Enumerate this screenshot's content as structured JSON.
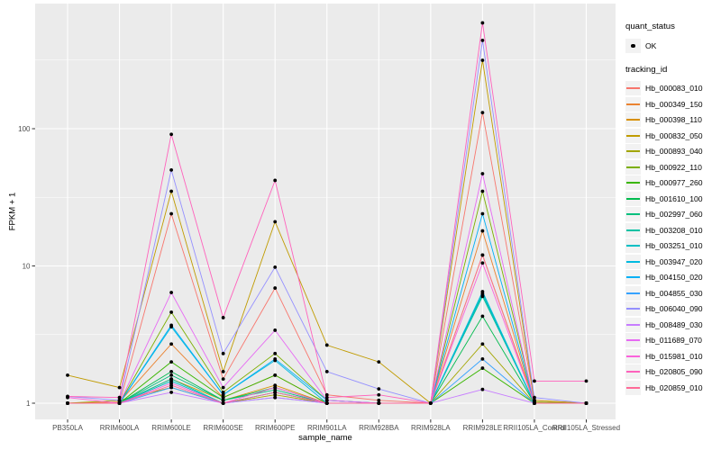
{
  "legend": {
    "quant_status": {
      "title": "quant_status",
      "items": [
        {
          "label": "OK",
          "marker": "black-point"
        }
      ]
    },
    "tracking_id": {
      "title": "tracking_id"
    }
  },
  "chart_data": {
    "type": "line",
    "title": "",
    "xlabel": "sample_name",
    "ylabel": "FPKM + 1",
    "yscale": "log10",
    "yticks": [
      1,
      10,
      100
    ],
    "yticks_minor": [
      3.162,
      31.62,
      316.2
    ],
    "ylim": [
      0.73,
      820
    ],
    "grid": "on",
    "legend_position": "right",
    "panel_bg": "#EBEBEB",
    "grid_color": "#FFFFFF",
    "point_color": "#000000",
    "tick_label_color": "#4D4D4D",
    "categories": [
      "PB350LA",
      "RRIM600LA",
      "RRIM600LE",
      "RRIM600SE",
      "RRIM600PE",
      "RRIM901LA",
      "RRIM928BA",
      "RRIM928LA",
      "RRIM928LE",
      "RRII105LA_Control",
      "RRII105LA_Stressed"
    ],
    "series": [
      {
        "name": "Hb_000083_010",
        "color": "#F8766D",
        "values": [
          1.0,
          1.0,
          24,
          1.5,
          6.9,
          1.15,
          1.05,
          1.0,
          131,
          1.05,
          1.0
        ]
      },
      {
        "name": "Hb_000349_150",
        "color": "#EA8331",
        "values": [
          1.0,
          1.02,
          2.7,
          1.1,
          1.6,
          1.0,
          1.0,
          1.0,
          18,
          1.0,
          1.0
        ]
      },
      {
        "name": "Hb_000398_110",
        "color": "#D89000",
        "values": [
          1.0,
          1.0,
          1.5,
          1.05,
          1.35,
          1.0,
          1.0,
          1.0,
          12,
          1.02,
          1.0
        ]
      },
      {
        "name": "Hb_000832_050",
        "color": "#C09B00",
        "values": [
          1.6,
          1.3,
          35,
          1.7,
          21,
          2.65,
          2.0,
          1.0,
          315,
          1.05,
          1.0
        ]
      },
      {
        "name": "Hb_000893_040",
        "color": "#A3A500",
        "values": [
          1.0,
          1.05,
          1.3,
          1.0,
          1.15,
          1.0,
          1.0,
          1.0,
          2.7,
          1.0,
          1.0
        ]
      },
      {
        "name": "Hb_000922_110",
        "color": "#7CAE00",
        "values": [
          1.0,
          1.0,
          4.6,
          1.2,
          2.3,
          1.05,
          1.0,
          1.0,
          35,
          1.02,
          1.0
        ]
      },
      {
        "name": "Hb_000977_260",
        "color": "#39B600",
        "values": [
          1.0,
          1.0,
          2.0,
          1.1,
          1.6,
          1.0,
          1.0,
          1.0,
          1.8,
          1.0,
          1.0
        ]
      },
      {
        "name": "Hb_001610_100",
        "color": "#00BB4E",
        "values": [
          1.0,
          1.0,
          1.7,
          1.05,
          1.3,
          1.0,
          1.0,
          1.0,
          4.3,
          1.0,
          1.0
        ]
      },
      {
        "name": "Hb_002997_060",
        "color": "#00BF7D",
        "values": [
          1.0,
          1.0,
          1.6,
          1.05,
          1.25,
          1.0,
          1.0,
          1.0,
          6.0,
          1.0,
          1.0
        ]
      },
      {
        "name": "Hb_003208_010",
        "color": "#00C1A3",
        "values": [
          1.0,
          1.0,
          1.5,
          1.0,
          1.2,
          1.0,
          1.0,
          1.0,
          6.3,
          1.0,
          1.0
        ]
      },
      {
        "name": "Hb_003251_010",
        "color": "#00BFC4",
        "values": [
          1.0,
          1.0,
          1.45,
          1.0,
          1.2,
          1.0,
          1.0,
          1.0,
          6.1,
          1.0,
          1.0
        ]
      },
      {
        "name": "Hb_003947_020",
        "color": "#00BAE0",
        "values": [
          1.0,
          1.0,
          3.6,
          1.15,
          2.05,
          1.0,
          1.0,
          1.0,
          6.5,
          1.0,
          1.0
        ]
      },
      {
        "name": "Hb_004150_020",
        "color": "#00B0F6",
        "values": [
          1.0,
          1.0,
          3.7,
          1.15,
          2.1,
          1.05,
          1.0,
          1.0,
          24,
          1.0,
          1.0
        ]
      },
      {
        "name": "Hb_004855_030",
        "color": "#35A2FF",
        "values": [
          1.0,
          1.0,
          1.3,
          1.0,
          1.1,
          1.0,
          1.0,
          1.0,
          2.1,
          1.0,
          1.0
        ]
      },
      {
        "name": "Hb_006040_090",
        "color": "#9590FF",
        "values": [
          1.12,
          1.05,
          50,
          2.3,
          9.8,
          1.7,
          1.27,
          1.0,
          440,
          1.1,
          1.0
        ]
      },
      {
        "name": "Hb_008489_030",
        "color": "#C77CFF",
        "values": [
          1.0,
          1.0,
          1.2,
          1.0,
          1.1,
          1.0,
          1.0,
          1.0,
          1.26,
          1.0,
          1.0
        ]
      },
      {
        "name": "Hb_011689_070",
        "color": "#E76BF3",
        "values": [
          1.0,
          1.0,
          6.4,
          1.3,
          3.4,
          1.05,
          1.0,
          1.0,
          47,
          1.0,
          1.0
        ]
      },
      {
        "name": "Hb_015981_010",
        "color": "#FA62DB",
        "values": [
          1.1,
          1.0,
          1.4,
          1.0,
          1.3,
          1.0,
          1.0,
          1.0,
          10.5,
          1.0,
          1.0
        ]
      },
      {
        "name": "Hb_020805_090",
        "color": "#FF62BC",
        "values": [
          1.12,
          1.1,
          91,
          4.2,
          42,
          1.1,
          1.15,
          1.0,
          590,
          1.45,
          1.45
        ]
      },
      {
        "name": "Hb_020859_010",
        "color": "#FF6A98",
        "values": [
          1.0,
          1.0,
          1.35,
          1.0,
          1.2,
          1.0,
          1.0,
          1.0,
          12,
          1.0,
          1.0
        ]
      }
    ]
  }
}
